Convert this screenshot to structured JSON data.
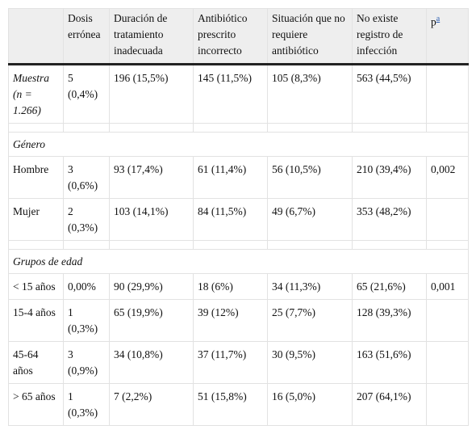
{
  "table": {
    "header": [
      "Dosis errónea",
      "Duración de tratamiento inadecuada",
      "Antibiótico prescrito incorrecto",
      "Situación que no requiere antibiótico",
      "No existe registro de infección",
      "p"
    ],
    "header_footnote": "a",
    "rows": [
      {
        "label": "Muestra (n = 1.266)",
        "cells": [
          "5 (0,4%)",
          "196 (15,5%)",
          "145 (11,5%)",
          "105 (8,3%)",
          "563 (44,5%)"
        ]
      },
      {
        "section": "Género"
      },
      {
        "label": "Hombre",
        "cells": [
          "3 (0,6%)",
          "93 (17,4%)",
          "61 (11,4%)",
          "56 (10,5%)",
          "210 (39,4%)"
        ],
        "p": "0,002"
      },
      {
        "label": "Mujer",
        "cells": [
          "2 (0,3%)",
          "103 (14,1%)",
          "84 (11,5%)",
          "49 (6,7%)",
          "353 (48,2%)"
        ]
      },
      {
        "section": "Grupos de edad"
      },
      {
        "label": "< 15 años",
        "cells": [
          "0,00%",
          "90 (29,9%)",
          "18 (6%)",
          "34 (11,3%)",
          "65 (21,6%)"
        ],
        "p": "0,001"
      },
      {
        "label": "15-4 años",
        "cells": [
          "1 (0,3%)",
          "65 (19,9%)",
          "39 (12%)",
          "25 (7,7%)",
          "128 (39,3%)"
        ]
      },
      {
        "label": "45-64 años",
        "cells": [
          "3 (0,9%)",
          "34 (10,8%)",
          "37 (11,7%)",
          "30 (9,5%)",
          "163 (51,6%)"
        ]
      },
      {
        "label": "> 65 años",
        "cells": [
          "1 (0,3%)",
          "7 (2,2%)",
          "51 (15,8%)",
          "16 (5,0%)",
          "207 (64,1%)"
        ]
      }
    ]
  }
}
